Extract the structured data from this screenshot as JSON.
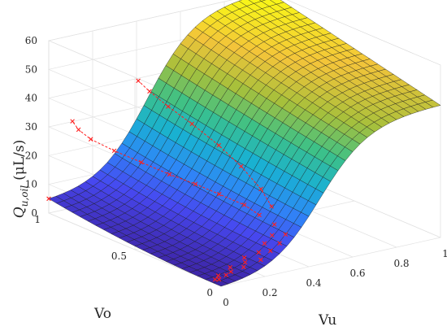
{
  "chart_data": {
    "type": "surface3d",
    "title": "",
    "xlabel": "Vu",
    "ylabel": "Vo",
    "zlabel_parts": {
      "main": "Q",
      "sub": "u,oil",
      "unit": "(μL/s)"
    },
    "xlim": [
      0,
      1
    ],
    "ylim": [
      0,
      1
    ],
    "zlim": [
      0,
      60
    ],
    "x_ticks": [
      "0",
      "0.2",
      "0.4",
      "0.6",
      "0.8",
      "1"
    ],
    "x_tick_values": [
      0,
      0.2,
      0.4,
      0.6,
      0.8,
      1
    ],
    "y_ticks": [
      "0",
      "0.5",
      "1"
    ],
    "y_tick_values": [
      0,
      0.5,
      1
    ],
    "z_ticks": [
      "0",
      "10",
      "20",
      "30",
      "40",
      "50",
      "60"
    ],
    "z_tick_values": [
      0,
      10,
      20,
      30,
      40,
      50,
      60
    ],
    "grid": true,
    "colormap": [
      "#3e26a8",
      "#4748f0",
      "#2e87f7",
      "#19b1d2",
      "#3dc187",
      "#a7c03b",
      "#f3c43a",
      "#f9fb15"
    ],
    "surface_samples": [
      {
        "vu": 0,
        "vo": 0,
        "q": 0
      },
      {
        "vu": 1,
        "vo": 0,
        "q": 46
      },
      {
        "vu": 1,
        "vo": 1,
        "q": 60
      },
      {
        "vu": 0,
        "vo": 1,
        "q": 5
      },
      {
        "vu": 0.5,
        "vo": 0.5,
        "q": 24
      }
    ],
    "series": [
      {
        "type": "scatter",
        "marker": "x",
        "color": "#ff2020",
        "points": [
          [
            0.02,
            0.06,
            0.5
          ],
          [
            0.03,
            0.05,
            0.6
          ],
          [
            0.05,
            0.08,
            0.8
          ],
          [
            0.07,
            0.06,
            1.2
          ],
          [
            0.1,
            0.07,
            1.6
          ],
          [
            0.12,
            0.1,
            2.0
          ],
          [
            0.15,
            0.06,
            2.6
          ],
          [
            0.18,
            0.09,
            3.0
          ],
          [
            0.2,
            0.12,
            3.5
          ],
          [
            0.22,
            0.05,
            4.2
          ],
          [
            0.25,
            0.1,
            5.0
          ],
          [
            0.28,
            0.07,
            5.8
          ],
          [
            0.3,
            0.13,
            6.5
          ],
          [
            0.33,
            0.08,
            7.3
          ],
          [
            0.35,
            0.15,
            8.0
          ],
          [
            0.38,
            0.11,
            8.8
          ],
          [
            0.4,
            0.2,
            9.6
          ],
          [
            0.41,
            0.3,
            10.2
          ],
          [
            0.42,
            0.4,
            11.0
          ],
          [
            0.4,
            0.52,
            12.0
          ],
          [
            0.37,
            0.62,
            13.5
          ],
          [
            0.33,
            0.72,
            15.0
          ],
          [
            0.28,
            0.82,
            17.5
          ],
          [
            0.22,
            0.9,
            20.5
          ],
          [
            0.16,
            0.96,
            24.0
          ],
          [
            0.12,
            0.98,
            27.5
          ],
          [
            0.1,
            0.99,
            30.5
          ],
          [
            0.45,
            0.28,
            13.0
          ],
          [
            0.48,
            0.38,
            16.0
          ],
          [
            0.5,
            0.52,
            20.0
          ],
          [
            0.5,
            0.65,
            24.0
          ],
          [
            0.48,
            0.78,
            28.5
          ],
          [
            0.45,
            0.88,
            32.5
          ],
          [
            0.42,
            0.95,
            36.5
          ],
          [
            0.4,
            0.99,
            39.5
          ],
          [
            0.0,
            1.0,
            5.0
          ]
        ]
      }
    ]
  }
}
